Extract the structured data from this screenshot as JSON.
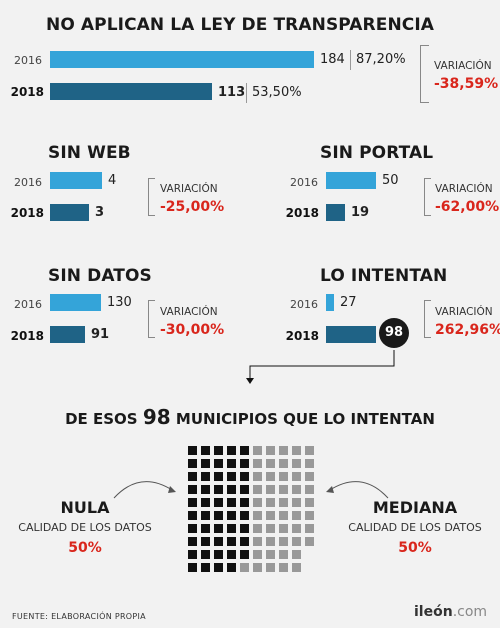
{
  "chart_data": [
    {
      "type": "bar",
      "title": "NO APLICAN LA LEY DE TRANSPARENCIA",
      "categories": [
        "2016",
        "2018"
      ],
      "values": [
        184,
        113
      ],
      "percent_labels": [
        "87,20%",
        "53,50%"
      ],
      "variation_label": "VARIACIÓN",
      "variation": "-38,59%"
    },
    {
      "type": "bar",
      "title": "SIN WEB",
      "categories": [
        "2016",
        "2018"
      ],
      "values": [
        4,
        3
      ],
      "variation_label": "VARIACIÓN",
      "variation": "-25,00%"
    },
    {
      "type": "bar",
      "title": "SIN PORTAL",
      "categories": [
        "2016",
        "2018"
      ],
      "values": [
        50,
        19
      ],
      "variation_label": "VARIACIÓN",
      "variation": "-62,00%"
    },
    {
      "type": "bar",
      "title": "SIN DATOS",
      "categories": [
        "2016",
        "2018"
      ],
      "values": [
        130,
        91
      ],
      "variation_label": "VARIACIÓN",
      "variation": "-30,00%"
    },
    {
      "type": "bar",
      "title": "LO INTENTAN",
      "categories": [
        "2016",
        "2018"
      ],
      "values": [
        27,
        98
      ],
      "variation_label": "VARIACIÓN",
      "variation": "262,96%"
    }
  ],
  "breakdown": {
    "title_pre": "DE ESOS",
    "number": "98",
    "title_post": "MUNICIPIOS QUE LO INTENTAN",
    "total": 98,
    "left": {
      "title": "NULA",
      "subtitle": "CALIDAD DE LOS DATOS",
      "pct": "50%",
      "color": "#111111",
      "count": 49
    },
    "right": {
      "title": "MEDIANA",
      "subtitle": "CALIDAD DE LOS DATOS",
      "pct": "50%",
      "color": "#999999",
      "count": 49
    }
  },
  "footer": {
    "source": "FUENTE:  ELABORACIÓN PROPIA",
    "logo_main": "ileón",
    "logo_domain": ".com"
  },
  "colors": {
    "bar_2016": "#34a4d9",
    "bar_2018": "#1f6386",
    "variation": "#d9261c"
  }
}
